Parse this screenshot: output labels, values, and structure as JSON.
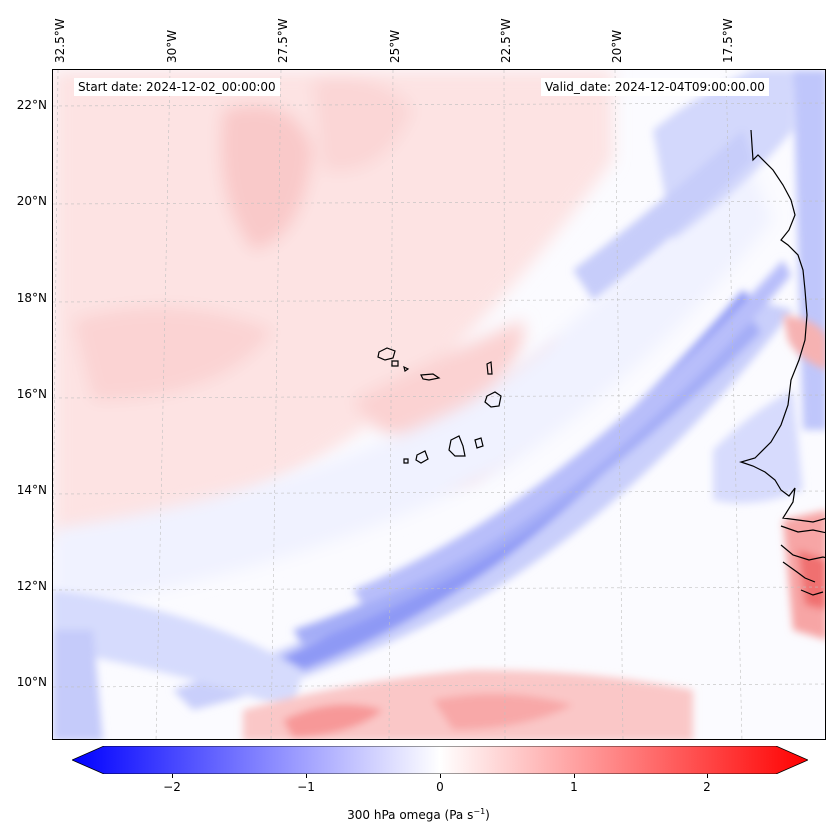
{
  "header": {
    "start_date": "Start date: 2024-12-02_00:00:00",
    "valid_date": "Valid_date: 2024-12-04T09:00:00.00"
  },
  "axes": {
    "longitudes": [
      "32.5°W",
      "30°W",
      "27.5°W",
      "25°W",
      "22.5°W",
      "20°W",
      "17.5°W"
    ],
    "latitudes": [
      "22°N",
      "20°N",
      "18°N",
      "16°N",
      "14°N",
      "12°N",
      "10°N"
    ]
  },
  "colorbar": {
    "variable": "300 hPa omega",
    "units_text": "(Pa s",
    "units_exp": "−1",
    "units_close": ")",
    "ticks": [
      "−2",
      "−1",
      "0",
      "1",
      "2"
    ],
    "vmin": -2.75,
    "vmax": 2.75,
    "neg_color": "#0000ff",
    "pos_color": "#ff0000"
  },
  "map_features": {
    "coastline": "West African coast",
    "islands": "Cape Verde Islands"
  }
}
